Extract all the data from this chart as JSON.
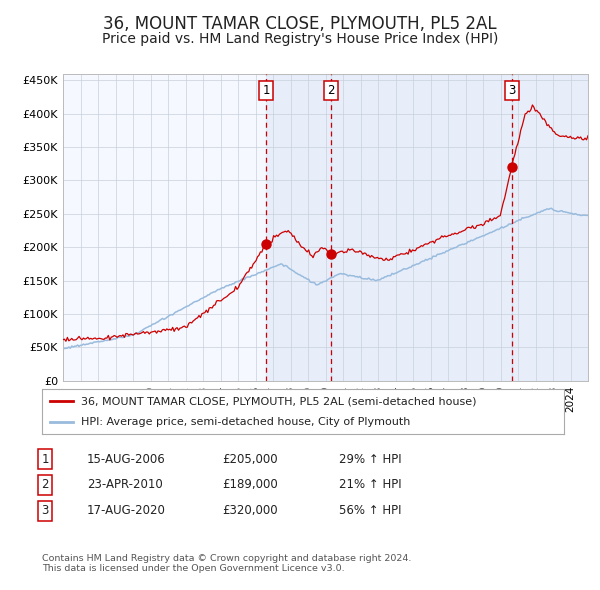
{
  "title": "36, MOUNT TAMAR CLOSE, PLYMOUTH, PL5 2AL",
  "subtitle": "Price paid vs. HM Land Registry's House Price Index (HPI)",
  "title_fontsize": 12,
  "subtitle_fontsize": 10,
  "legend_line1": "36, MOUNT TAMAR CLOSE, PLYMOUTH, PL5 2AL (semi-detached house)",
  "legend_line2": "HPI: Average price, semi-detached house, City of Plymouth",
  "sale_color": "#cc0000",
  "hpi_color": "#99bbdd",
  "bg_color": "#f5f8ff",
  "table_entries": [
    {
      "num": "1",
      "date": "15-AUG-2006",
      "price": "£205,000",
      "hpi": "29% ↑ HPI"
    },
    {
      "num": "2",
      "date": "23-APR-2010",
      "price": "£189,000",
      "hpi": "21% ↑ HPI"
    },
    {
      "num": "3",
      "date": "17-AUG-2020",
      "price": "£320,000",
      "hpi": "56% ↑ HPI"
    }
  ],
  "copyright_text": "Contains HM Land Registry data © Crown copyright and database right 2024.\nThis data is licensed under the Open Government Licence v3.0.",
  "ylim": [
    0,
    460000
  ],
  "yticks": [
    0,
    50000,
    100000,
    150000,
    200000,
    250000,
    300000,
    350000,
    400000,
    450000
  ],
  "ytick_labels": [
    "£0",
    "£50K",
    "£100K",
    "£150K",
    "£200K",
    "£250K",
    "£300K",
    "£350K",
    "£400K",
    "£450K"
  ],
  "sale_dates": [
    2006.62,
    2010.31,
    2020.63
  ],
  "sale_prices": [
    205000,
    189000,
    320000
  ],
  "sale_nums": [
    "1",
    "2",
    "3"
  ],
  "xmin": 1995.0,
  "xmax": 2025.0,
  "year_ticks": [
    1995,
    1996,
    1997,
    1998,
    1999,
    2000,
    2001,
    2002,
    2003,
    2004,
    2005,
    2006,
    2007,
    2008,
    2009,
    2010,
    2011,
    2012,
    2013,
    2014,
    2015,
    2016,
    2017,
    2018,
    2019,
    2020,
    2021,
    2022,
    2023,
    2024
  ]
}
